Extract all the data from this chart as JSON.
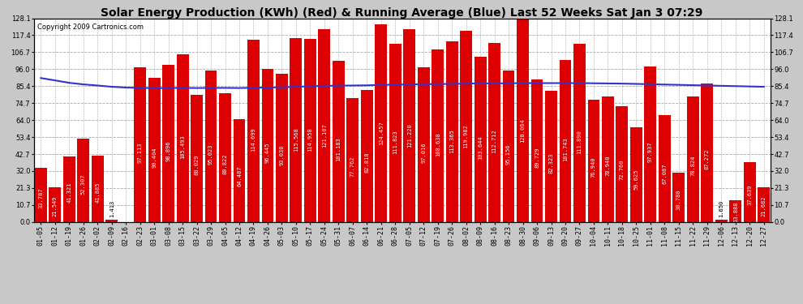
{
  "title": "Solar Energy Production (KWh) (Red) & Running Average (Blue) Last 52 Weeks Sat Jan 3 07:29",
  "copyright": "Copyright 2009 Cartronics.com",
  "bar_color": "#dd0000",
  "line_color": "#3333cc",
  "background_color": "#c8c8c8",
  "plot_bg_color": "#ffffff",
  "grid_color": "#aaaaaa",
  "categories": [
    "01-05",
    "01-12",
    "01-19",
    "01-26",
    "02-02",
    "02-09",
    "02-16",
    "02-23",
    "03-01",
    "03-08",
    "03-15",
    "03-22",
    "03-29",
    "04-05",
    "04-12",
    "04-19",
    "04-26",
    "05-03",
    "05-10",
    "05-17",
    "05-24",
    "05-31",
    "06-07",
    "06-14",
    "06-21",
    "06-28",
    "07-05",
    "07-12",
    "07-19",
    "07-26",
    "08-02",
    "08-09",
    "08-16",
    "08-23",
    "08-30",
    "09-06",
    "09-13",
    "09-20",
    "09-27",
    "10-04",
    "10-11",
    "10-18",
    "10-25",
    "11-01",
    "11-08",
    "11-15",
    "11-22",
    "11-29",
    "12-06",
    "12-13",
    "12-20",
    "12-27"
  ],
  "values": [
    33.787,
    21.549,
    41.321,
    52.307,
    41.885,
    1.413,
    0.0,
    97.113,
    90.404,
    98.896,
    105.493,
    80.029,
    95.023,
    80.822,
    64.487,
    114.699,
    96.445,
    93.03,
    115.568,
    114.958,
    121.107,
    101.183,
    77.762,
    82.818,
    124.457,
    111.823,
    121.22,
    97.016,
    108.638,
    113.365,
    119.982,
    103.644,
    112.712,
    95.156,
    128.064,
    89.729,
    82.323,
    101.743,
    111.89,
    76.94,
    78.94,
    72.76,
    59.625,
    97.937,
    67.087,
    30.78,
    78.824,
    87.272,
    1.65,
    13.888,
    37.639,
    21.682
  ],
  "running_avg": [
    90.5,
    89.0,
    87.5,
    86.5,
    85.8,
    85.0,
    84.5,
    84.3,
    84.2,
    84.2,
    84.3,
    84.2,
    84.3,
    84.3,
    84.2,
    84.4,
    84.5,
    84.7,
    85.0,
    85.3,
    85.6,
    85.7,
    85.8,
    85.9,
    86.2,
    86.4,
    86.5,
    86.6,
    86.7,
    86.8,
    87.0,
    87.1,
    87.1,
    87.2,
    87.3,
    87.3,
    87.3,
    87.3,
    87.3,
    87.2,
    87.1,
    87.0,
    86.8,
    86.6,
    86.4,
    86.2,
    86.0,
    85.8,
    85.6,
    85.4,
    85.2,
    85.0
  ],
  "ylim": [
    0.0,
    128.1
  ],
  "yticks": [
    0.0,
    10.7,
    21.3,
    32.0,
    42.7,
    53.4,
    64.0,
    74.7,
    85.4,
    96.0,
    106.7,
    117.4,
    128.1
  ],
  "title_fontsize": 10,
  "copyright_fontsize": 6,
  "tick_fontsize": 6,
  "bar_value_fontsize": 5
}
